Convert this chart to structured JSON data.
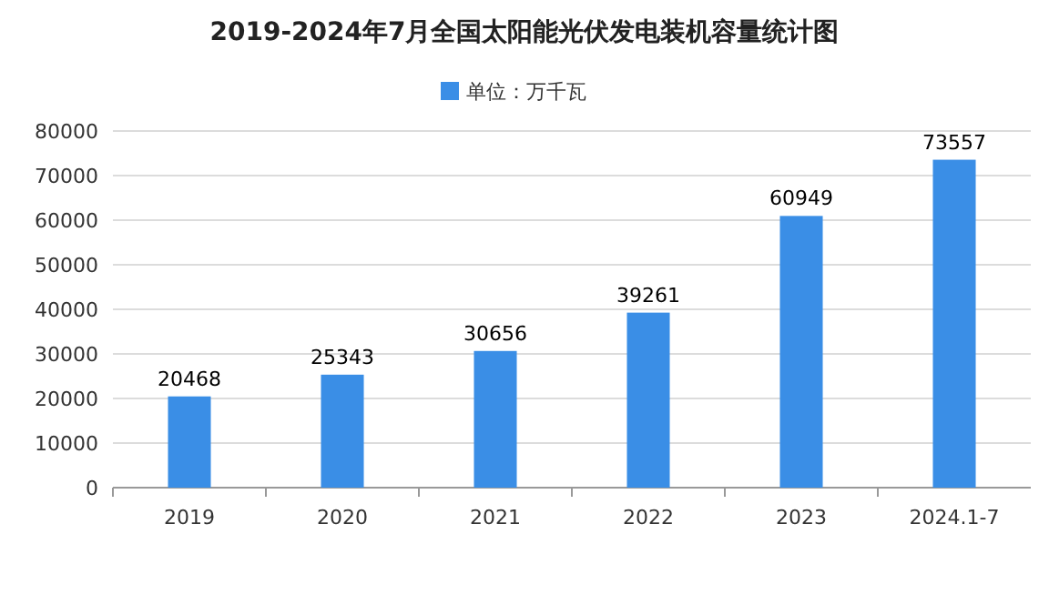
{
  "chart_data": {
    "type": "bar",
    "title": "2019-2024年7月全国太阳能光伏发电装机容量统计图",
    "categories": [
      "2019",
      "2020",
      "2021",
      "2022",
      "2023",
      "2024.1-7"
    ],
    "series": [
      {
        "name": "单位：万千瓦",
        "color": "#3a8ee6",
        "values": [
          20468,
          25343,
          30656,
          39261,
          60949,
          73557
        ]
      }
    ],
    "ylim": [
      0,
      80000
    ],
    "yticks": [
      0,
      10000,
      20000,
      30000,
      40000,
      50000,
      60000,
      70000,
      80000
    ],
    "grid": "y",
    "legend": "top",
    "data_labels": true
  }
}
